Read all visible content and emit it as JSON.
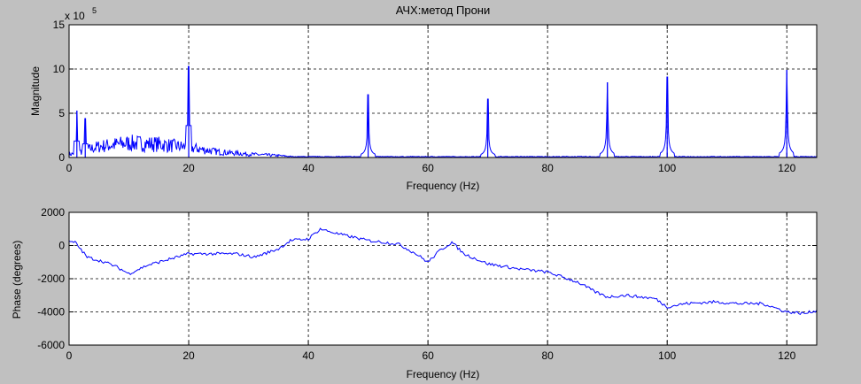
{
  "window": {
    "title": "АЧХ:метод Прони"
  },
  "chart_data": [
    {
      "type": "line",
      "title": "АЧХ:метод Прони",
      "xlabel": "Frequency (Hz)",
      "ylabel": "Magnitude",
      "y_exponent_label": "x 10",
      "y_exponent": "5",
      "xlim": [
        0,
        125
      ],
      "ylim": [
        0,
        15
      ],
      "xticks": [
        0,
        20,
        40,
        60,
        80,
        100,
        120
      ],
      "yticks": [
        0,
        5,
        10,
        15
      ],
      "grid": true,
      "line_color": "#0000ff",
      "peaks": [
        {
          "x": 1.3,
          "y": 5.3
        },
        {
          "x": 2.7,
          "y": 4.4
        },
        {
          "x": 20.0,
          "y": 10.3
        },
        {
          "x": 50.0,
          "y": 7.1
        },
        {
          "x": 70.0,
          "y": 6.6
        },
        {
          "x": 90.0,
          "y": 8.5
        },
        {
          "x": 100.0,
          "y": 9.1
        },
        {
          "x": 120.0,
          "y": 9.9
        }
      ],
      "noise_envelope": [
        {
          "x": 0,
          "y": 0.5
        },
        {
          "x": 5,
          "y": 2.0
        },
        {
          "x": 10,
          "y": 2.6
        },
        {
          "x": 15,
          "y": 2.4
        },
        {
          "x": 20,
          "y": 1.8
        },
        {
          "x": 25,
          "y": 1.0
        },
        {
          "x": 30,
          "y": 0.6
        },
        {
          "x": 35,
          "y": 0.35
        },
        {
          "x": 38,
          "y": 0.1
        },
        {
          "x": 125,
          "y": 0.1
        }
      ]
    },
    {
      "type": "line",
      "xlabel": "Frequency (Hz)",
      "ylabel": "Phase (degrees)",
      "xlim": [
        0,
        125
      ],
      "ylim": [
        -6000,
        2000
      ],
      "xticks": [
        0,
        20,
        40,
        60,
        80,
        100,
        120
      ],
      "yticks": [
        -6000,
        -4000,
        -2000,
        0,
        2000
      ],
      "grid": true,
      "line_color": "#0000ff",
      "x": [
        0,
        1,
        3,
        6,
        8,
        10,
        13,
        16,
        20,
        24,
        28,
        31,
        35,
        37,
        40,
        42,
        45,
        50,
        55,
        58,
        60,
        62,
        64,
        66,
        70,
        75,
        80,
        85,
        88,
        90,
        93,
        98,
        100,
        103,
        108,
        112,
        116,
        120,
        123,
        125
      ],
      "y": [
        200,
        200,
        -700,
        -1000,
        -1300,
        -1700,
        -1200,
        -900,
        -500,
        -500,
        -500,
        -700,
        -200,
        300,
        400,
        1000,
        700,
        300,
        100,
        -500,
        -1000,
        -300,
        200,
        -500,
        -1100,
        -1400,
        -1600,
        -2200,
        -2800,
        -3100,
        -3000,
        -3200,
        -3700,
        -3500,
        -3400,
        -3500,
        -3500,
        -4000,
        -4100,
        -3900
      ]
    }
  ]
}
